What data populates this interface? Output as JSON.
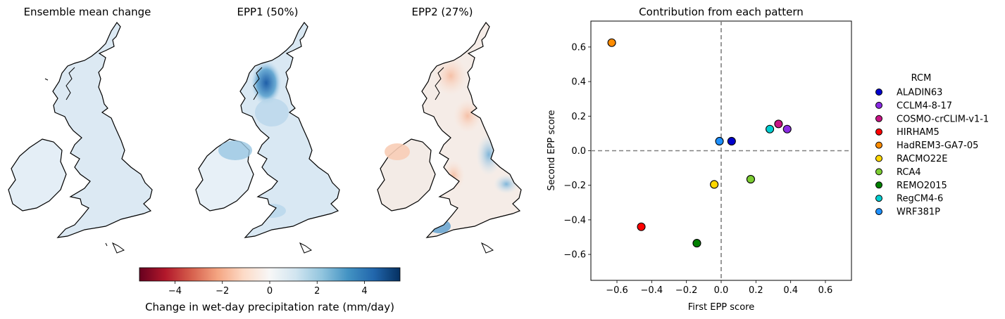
{
  "maps": [
    {
      "title": "Ensemble mean change"
    },
    {
      "title": "EPP1 (50%)"
    },
    {
      "title": "EPP2 (27%)"
    }
  ],
  "colorbar": {
    "label": "Change in wet-day precipitation rate (mm/day)",
    "ticks": [
      "−4",
      "−2",
      "0",
      "2",
      "4"
    ],
    "tick_values": [
      -4,
      -2,
      0,
      2,
      4
    ],
    "range": [
      -5.5,
      5.5
    ],
    "colormap": "RdBu"
  },
  "chart_data": {
    "type": "scatter",
    "title": "Contribution from each pattern",
    "xlabel": "First EPP score",
    "ylabel": "Second EPP score",
    "xlim": [
      -0.75,
      0.75
    ],
    "ylim": [
      -0.75,
      0.75
    ],
    "xticks": [
      -0.6,
      -0.4,
      -0.2,
      0.0,
      0.2,
      0.4,
      0.6
    ],
    "yticks": [
      -0.6,
      -0.4,
      -0.2,
      0.0,
      0.2,
      0.4,
      0.6
    ],
    "xtick_labels": [
      "−0.6",
      "−0.4",
      "−0.2",
      "0.0",
      "0.2",
      "0.4",
      "0.6"
    ],
    "ytick_labels": [
      "−0.6",
      "−0.4",
      "−0.2",
      "0.0",
      "0.2",
      "0.4",
      "0.6"
    ],
    "grid": false,
    "reference_lines": {
      "x": 0,
      "y": 0,
      "style": "dashed",
      "color": "#808080"
    },
    "legend": {
      "title": "RCM",
      "placement": "outside-right"
    },
    "series": [
      {
        "name": "ALADIN63",
        "x": 0.06,
        "y": 0.055,
        "color": "#0000cd"
      },
      {
        "name": "CCLM4-8-17",
        "x": 0.38,
        "y": 0.125,
        "color": "#8a2be2"
      },
      {
        "name": "COSMO-crCLIM-v1-1",
        "x": 0.33,
        "y": 0.155,
        "color": "#c71585"
      },
      {
        "name": "HIRHAM5",
        "x": -0.46,
        "y": -0.44,
        "color": "#ff0000"
      },
      {
        "name": "HadREM3-GA7-05",
        "x": -0.63,
        "y": 0.625,
        "color": "#ff8c00"
      },
      {
        "name": "RACMO22E",
        "x": -0.04,
        "y": -0.195,
        "color": "#ffd700"
      },
      {
        "name": "RCA4",
        "x": 0.17,
        "y": -0.165,
        "color": "#7ccd32"
      },
      {
        "name": "REMO2015",
        "x": -0.14,
        "y": -0.535,
        "color": "#008000"
      },
      {
        "name": "RegCM4-6",
        "x": 0.28,
        "y": 0.125,
        "color": "#00ced1"
      },
      {
        "name": "WRF381P",
        "x": -0.01,
        "y": 0.055,
        "color": "#1e90ff"
      }
    ]
  }
}
